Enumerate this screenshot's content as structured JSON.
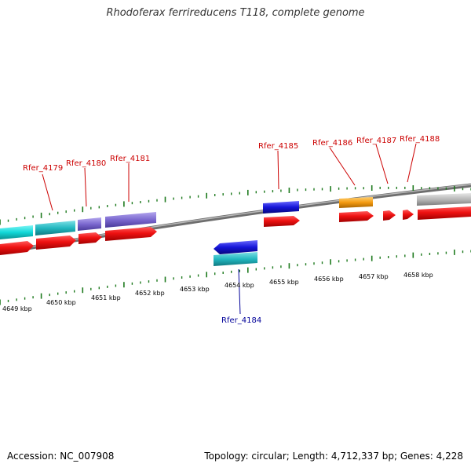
{
  "title": "Rhodoferax ferrireducens T118, complete genome",
  "footer": {
    "accession": "Accession: NC_007908",
    "summary": "Topology: circular; Length: 4,712,337 bp; Genes: 4,228"
  },
  "colors": {
    "backbone": "#8a8a8a",
    "tick": "#1e7a1e",
    "cds_red": "#ee1111",
    "label_top": "#cc0000",
    "label_bottom": "#000099",
    "cyan": "#11d8d8",
    "teal": "#22b8c0",
    "purple": "#7b68cf",
    "blue": "#1515d8",
    "orange": "#f39a10",
    "gray": "#b8b8b8"
  },
  "kbp_labels": [
    "4649 kbp",
    "4650 kbp",
    "4651 kbp",
    "4652 kbp",
    "4653 kbp",
    "4654 kbp",
    "4655 kbp",
    "4656 kbp",
    "4657 kbp",
    "4658 kbp"
  ],
  "gene_labels_top": [
    "Rfer_4179",
    "Rfer_4180",
    "Rfer_4181",
    "Rfer_4185",
    "Rfer_4186",
    "Rfer_4187",
    "Rfer_4188"
  ],
  "gene_labels_bottom": [
    "Rfer_4184"
  ],
  "features_top": [
    {
      "color": "cyan",
      "strand": "none"
    },
    {
      "color": "teal",
      "strand": "none"
    },
    {
      "color": "purple",
      "strand": "none"
    },
    {
      "color": "purple",
      "strand": "none"
    },
    {
      "color": "blue",
      "strand": "none"
    },
    {
      "color": "orange",
      "strand": "none"
    },
    {
      "color": "gray",
      "strand": "none"
    }
  ],
  "cds_top": [
    "cds",
    "cds",
    "cds",
    "cds",
    "cds",
    "cds",
    "cds",
    "cds"
  ],
  "features_bottom": [
    {
      "color": "blue",
      "strand": "reverse"
    },
    {
      "color": "teal",
      "strand": "none"
    }
  ]
}
